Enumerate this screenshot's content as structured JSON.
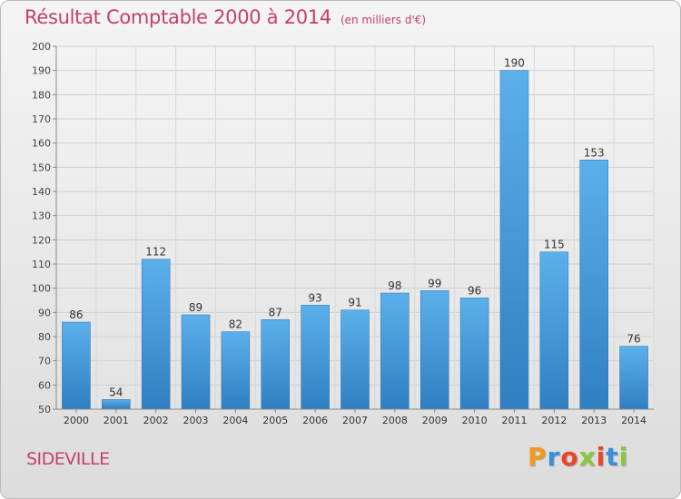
{
  "header": {
    "title": "Résultat Comptable 2000 à 2014",
    "unit": "(en milliers d'€)"
  },
  "footer": {
    "commune": "SIDEVILLE",
    "logo_letters": [
      "P",
      "r",
      "o",
      "x",
      "i",
      "t",
      "i"
    ],
    "logo_colors": [
      "#f29a1f",
      "#3a8fd8",
      "#e8462a",
      "#8cc63f",
      "#e8462a",
      "#3a8fd8",
      "#8cc63f"
    ]
  },
  "chart_data": {
    "type": "bar",
    "title": "Résultat Comptable 2000 à 2014",
    "categories": [
      "2000",
      "2001",
      "2002",
      "2003",
      "2004",
      "2005",
      "2006",
      "2007",
      "2008",
      "2009",
      "2010",
      "2011",
      "2012",
      "2013",
      "2014"
    ],
    "values": [
      86,
      54,
      112,
      89,
      82,
      87,
      93,
      91,
      98,
      99,
      96,
      190,
      115,
      153,
      76
    ],
    "ylim": [
      50,
      200
    ],
    "yticks": [
      50,
      60,
      70,
      80,
      90,
      100,
      110,
      120,
      130,
      140,
      150,
      160,
      170,
      180,
      190,
      200
    ],
    "grid": true,
    "bar_color": "#4aa0de"
  }
}
